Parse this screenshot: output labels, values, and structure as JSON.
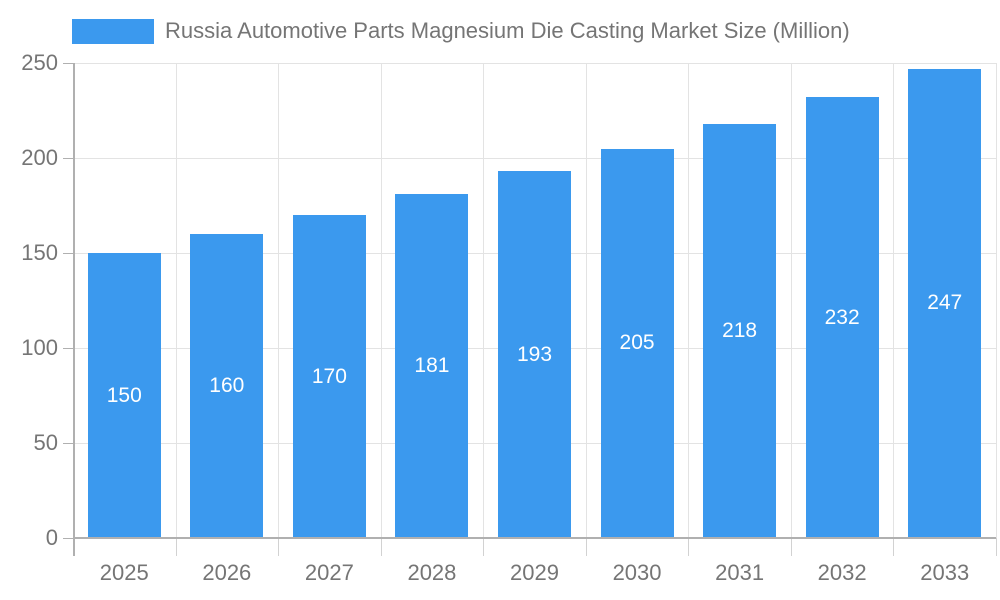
{
  "legend": {
    "label": "Russia Automotive Parts Magnesium Die Casting Market Size (Million)"
  },
  "colors": {
    "bar": "#3b99ee",
    "axis_line": "#b0b0b0",
    "gridline": "#e3e3e3",
    "tick_label": "#757575",
    "bar_value_label": "#ffffff",
    "background": "#ffffff"
  },
  "chart_data": {
    "type": "bar",
    "title": "Russia Automotive Parts Magnesium Die Casting Market Size (Million)",
    "categories": [
      "2025",
      "2026",
      "2027",
      "2028",
      "2029",
      "2030",
      "2031",
      "2032",
      "2033"
    ],
    "values": [
      150,
      160,
      170,
      181,
      193,
      205,
      218,
      232,
      247
    ],
    "xlabel": "",
    "ylabel": "",
    "ylim": [
      0,
      250
    ],
    "yticks": [
      0,
      50,
      100,
      150,
      200,
      250
    ],
    "grid": true,
    "legend_position": "top",
    "value_labels": "inside-center"
  }
}
